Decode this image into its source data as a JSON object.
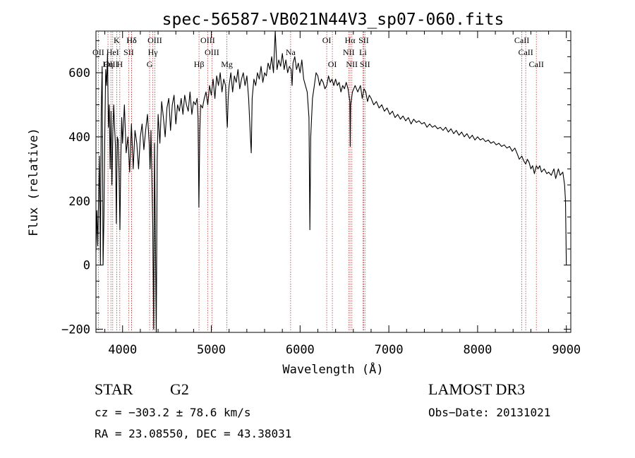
{
  "chart_data": {
    "type": "line",
    "title": "spec-56587-VB021N44V3_sp07-060.fits",
    "xlabel": "Wavelength (Å)",
    "ylabel": "Flux (relative)",
    "xlim": [
      3700,
      9050
    ],
    "ylim": [
      -210,
      730
    ],
    "xticks": [
      4000,
      5000,
      6000,
      7000,
      8000,
      9000
    ],
    "xtick_labels": [
      "4000",
      "5000",
      "6000",
      "7000",
      "8000",
      "9000"
    ],
    "yticks": [
      -200,
      0,
      200,
      400,
      600
    ],
    "ytick_labels": [
      "−200",
      "0",
      "200",
      "400",
      "600"
    ],
    "series": [
      {
        "name": "flux",
        "points": [
          [
            3700,
            40
          ],
          [
            3710,
            170
          ],
          [
            3720,
            60
          ],
          [
            3730,
            210
          ],
          [
            3740,
            340
          ],
          [
            3750,
            0
          ],
          [
            3760,
            480
          ],
          [
            3770,
            620
          ],
          [
            3780,
            0
          ],
          [
            3790,
            150
          ],
          [
            3800,
            420
          ],
          [
            3810,
            610
          ],
          [
            3820,
            560
          ],
          [
            3830,
            660
          ],
          [
            3840,
            430
          ],
          [
            3850,
            500
          ],
          [
            3860,
            300
          ],
          [
            3870,
            480
          ],
          [
            3880,
            250
          ],
          [
            3890,
            410
          ],
          [
            3900,
            500
          ],
          [
            3910,
            430
          ],
          [
            3920,
            370
          ],
          [
            3930,
            130
          ],
          [
            3940,
            400
          ],
          [
            3950,
            390
          ],
          [
            3960,
            290
          ],
          [
            3970,
            110
          ],
          [
            3980,
            330
          ],
          [
            3990,
            460
          ],
          [
            4000,
            380
          ],
          [
            4020,
            500
          ],
          [
            4040,
            350
          ],
          [
            4060,
            400
          ],
          [
            4080,
            290
          ],
          [
            4100,
            440
          ],
          [
            4120,
            300
          ],
          [
            4140,
            420
          ],
          [
            4160,
            380
          ],
          [
            4180,
            300
          ],
          [
            4200,
            400
          ],
          [
            4220,
            440
          ],
          [
            4240,
            360
          ],
          [
            4260,
            420
          ],
          [
            4280,
            470
          ],
          [
            4300,
            380
          ],
          [
            4310,
            300
          ],
          [
            4320,
            420
          ],
          [
            4340,
            120
          ],
          [
            4350,
            -200
          ],
          [
            4360,
            380
          ],
          [
            4380,
            -210
          ],
          [
            4390,
            330
          ],
          [
            4400,
            470
          ],
          [
            4420,
            380
          ],
          [
            4440,
            510
          ],
          [
            4460,
            460
          ],
          [
            4480,
            400
          ],
          [
            4500,
            490
          ],
          [
            4520,
            520
          ],
          [
            4540,
            420
          ],
          [
            4560,
            500
          ],
          [
            4580,
            530
          ],
          [
            4600,
            440
          ],
          [
            4620,
            500
          ],
          [
            4640,
            480
          ],
          [
            4660,
            520
          ],
          [
            4680,
            470
          ],
          [
            4700,
            530
          ],
          [
            4720,
            500
          ],
          [
            4740,
            480
          ],
          [
            4760,
            540
          ],
          [
            4780,
            470
          ],
          [
            4800,
            510
          ],
          [
            4820,
            500
          ],
          [
            4840,
            520
          ],
          [
            4850,
            460
          ],
          [
            4860,
            180
          ],
          [
            4870,
            420
          ],
          [
            4880,
            500
          ],
          [
            4900,
            490
          ],
          [
            4920,
            520
          ],
          [
            4940,
            540
          ],
          [
            4960,
            500
          ],
          [
            4980,
            560
          ],
          [
            5000,
            530
          ],
          [
            5020,
            580
          ],
          [
            5040,
            520
          ],
          [
            5060,
            590
          ],
          [
            5080,
            560
          ],
          [
            5100,
            600
          ],
          [
            5120,
            540
          ],
          [
            5140,
            580
          ],
          [
            5160,
            560
          ],
          [
            5170,
            480
          ],
          [
            5180,
            430
          ],
          [
            5190,
            520
          ],
          [
            5200,
            560
          ],
          [
            5220,
            600
          ],
          [
            5240,
            540
          ],
          [
            5260,
            590
          ],
          [
            5280,
            570
          ],
          [
            5300,
            610
          ],
          [
            5320,
            550
          ],
          [
            5340,
            580
          ],
          [
            5360,
            600
          ],
          [
            5380,
            560
          ],
          [
            5400,
            590
          ],
          [
            5420,
            520
          ],
          [
            5440,
            400
          ],
          [
            5450,
            350
          ],
          [
            5460,
            520
          ],
          [
            5480,
            580
          ],
          [
            5500,
            560
          ],
          [
            5520,
            600
          ],
          [
            5540,
            580
          ],
          [
            5560,
            620
          ],
          [
            5580,
            570
          ],
          [
            5600,
            600
          ],
          [
            5620,
            590
          ],
          [
            5640,
            630
          ],
          [
            5660,
            610
          ],
          [
            5680,
            650
          ],
          [
            5700,
            600
          ],
          [
            5720,
            730
          ],
          [
            5740,
            610
          ],
          [
            5760,
            640
          ],
          [
            5780,
            620
          ],
          [
            5800,
            660
          ],
          [
            5820,
            610
          ],
          [
            5840,
            640
          ],
          [
            5860,
            600
          ],
          [
            5880,
            620
          ],
          [
            5900,
            610
          ],
          [
            5910,
            560
          ],
          [
            5920,
            630
          ],
          [
            5940,
            650
          ],
          [
            5960,
            610
          ],
          [
            5980,
            630
          ],
          [
            6000,
            600
          ],
          [
            6020,
            640
          ],
          [
            6040,
            580
          ],
          [
            6060,
            560
          ],
          [
            6080,
            540
          ],
          [
            6100,
            460
          ],
          [
            6110,
            110
          ],
          [
            6120,
            400
          ],
          [
            6140,
            520
          ],
          [
            6160,
            560
          ],
          [
            6180,
            600
          ],
          [
            6200,
            590
          ],
          [
            6220,
            560
          ],
          [
            6240,
            580
          ],
          [
            6260,
            570
          ],
          [
            6280,
            550
          ],
          [
            6300,
            560
          ],
          [
            6320,
            590
          ],
          [
            6340,
            570
          ],
          [
            6360,
            580
          ],
          [
            6380,
            560
          ],
          [
            6400,
            580
          ],
          [
            6420,
            560
          ],
          [
            6440,
            570
          ],
          [
            6460,
            540
          ],
          [
            6480,
            560
          ],
          [
            6500,
            550
          ],
          [
            6520,
            570
          ],
          [
            6540,
            550
          ],
          [
            6560,
            510
          ],
          [
            6565,
            370
          ],
          [
            6570,
            500
          ],
          [
            6590,
            540
          ],
          [
            6620,
            560
          ],
          [
            6650,
            540
          ],
          [
            6680,
            560
          ],
          [
            6700,
            520
          ],
          [
            6720,
            550
          ],
          [
            6740,
            540
          ],
          [
            6760,
            510
          ],
          [
            6780,
            530
          ],
          [
            6800,
            520
          ],
          [
            6830,
            500
          ],
          [
            6860,
            510
          ],
          [
            6890,
            490
          ],
          [
            6920,
            500
          ],
          [
            6950,
            480
          ],
          [
            6980,
            490
          ],
          [
            7010,
            470
          ],
          [
            7040,
            480
          ],
          [
            7070,
            460
          ],
          [
            7100,
            470
          ],
          [
            7130,
            455
          ],
          [
            7160,
            465
          ],
          [
            7190,
            450
          ],
          [
            7220,
            460
          ],
          [
            7250,
            440
          ],
          [
            7280,
            455
          ],
          [
            7310,
            445
          ],
          [
            7340,
            450
          ],
          [
            7370,
            440
          ],
          [
            7400,
            445
          ],
          [
            7430,
            430
          ],
          [
            7460,
            440
          ],
          [
            7490,
            430
          ],
          [
            7520,
            435
          ],
          [
            7550,
            425
          ],
          [
            7580,
            430
          ],
          [
            7610,
            420
          ],
          [
            7640,
            430
          ],
          [
            7670,
            415
          ],
          [
            7700,
            425
          ],
          [
            7730,
            410
          ],
          [
            7760,
            420
          ],
          [
            7790,
            405
          ],
          [
            7820,
            415
          ],
          [
            7850,
            400
          ],
          [
            7880,
            410
          ],
          [
            7910,
            395
          ],
          [
            7940,
            405
          ],
          [
            7970,
            390
          ],
          [
            8000,
            400
          ],
          [
            8030,
            390
          ],
          [
            8060,
            395
          ],
          [
            8090,
            385
          ],
          [
            8120,
            390
          ],
          [
            8150,
            380
          ],
          [
            8180,
            385
          ],
          [
            8210,
            375
          ],
          [
            8240,
            380
          ],
          [
            8270,
            370
          ],
          [
            8300,
            375
          ],
          [
            8330,
            365
          ],
          [
            8360,
            370
          ],
          [
            8390,
            355
          ],
          [
            8420,
            365
          ],
          [
            8450,
            345
          ],
          [
            8470,
            330
          ],
          [
            8498,
            340
          ],
          [
            8520,
            325
          ],
          [
            8542,
            315
          ],
          [
            8560,
            330
          ],
          [
            8580,
            320
          ],
          [
            8600,
            300
          ],
          [
            8620,
            310
          ],
          [
            8640,
            285
          ],
          [
            8662,
            310
          ],
          [
            8680,
            300
          ],
          [
            8700,
            310
          ],
          [
            8720,
            290
          ],
          [
            8750,
            300
          ],
          [
            8780,
            285
          ],
          [
            8800,
            290
          ],
          [
            8830,
            280
          ],
          [
            8860,
            300
          ],
          [
            8880,
            270
          ],
          [
            8910,
            300
          ],
          [
            8930,
            280
          ],
          [
            8960,
            290
          ],
          [
            8980,
            250
          ],
          [
            8990,
            200
          ],
          [
            8995,
            100
          ],
          [
            9000,
            0
          ]
        ]
      }
    ],
    "lines": [
      {
        "label": "Hδ",
        "wl": 4101.7,
        "row": 0
      },
      {
        "label": "K",
        "wl": 3933.7,
        "row": 0
      },
      {
        "label": "Hδ",
        "wl": 4101.7,
        "row": 0
      },
      {
        "label": "OIII",
        "wl": 4363.2,
        "row": 0
      },
      {
        "label": "OIII",
        "wl": 4958.9,
        "row": 0
      },
      {
        "label": "OI",
        "wl": 6300.3,
        "row": 0
      },
      {
        "label": "Hα",
        "wl": 6562.8,
        "row": 0
      },
      {
        "label": "SII",
        "wl": 6716.4,
        "row": 0
      },
      {
        "label": "CaII",
        "wl": 8498.0,
        "row": 0
      },
      {
        "label": "OII",
        "wl": 3727.0,
        "row": 1
      },
      {
        "label": "HeI",
        "wl": 3888.6,
        "row": 1
      },
      {
        "label": "SII",
        "wl": 4068.6,
        "row": 1
      },
      {
        "label": "Hγ",
        "wl": 4340.5,
        "row": 1
      },
      {
        "label": "OIII",
        "wl": 5006.8,
        "row": 1
      },
      {
        "label": "Na",
        "wl": 5892.9,
        "row": 1
      },
      {
        "label": "NII",
        "wl": 6548.0,
        "row": 1
      },
      {
        "label": "Li",
        "wl": 6707.8,
        "row": 1
      },
      {
        "label": "CaII",
        "wl": 8542.1,
        "row": 1
      },
      {
        "label": "OIII",
        "wl": 3868.7,
        "row": 2
      },
      {
        "label": "Hη",
        "wl": 3835.4,
        "row": 2
      },
      {
        "label": "H",
        "wl": 3968.5,
        "row": 2
      },
      {
        "label": "G",
        "wl": 4304.4,
        "row": 2
      },
      {
        "label": "Hβ",
        "wl": 4861.3,
        "row": 2
      },
      {
        "label": "Mg",
        "wl": 5175.3,
        "row": 2
      },
      {
        "label": "OI",
        "wl": 6363.8,
        "row": 2
      },
      {
        "label": "NII",
        "wl": 6583.4,
        "row": 2
      },
      {
        "label": "SII",
        "wl": 6730.8,
        "row": 2
      },
      {
        "label": "CaII",
        "wl": 8662.1,
        "row": 2
      }
    ]
  },
  "info": {
    "object_class": "STAR",
    "subclass": "G2",
    "survey": "LAMOST DR3",
    "cz": "cz = −303.2 ± 78.6 km/s",
    "obs_date": "Obs−Date: 20131021",
    "coords": "RA =  23.08550, DEC =  43.38031"
  }
}
